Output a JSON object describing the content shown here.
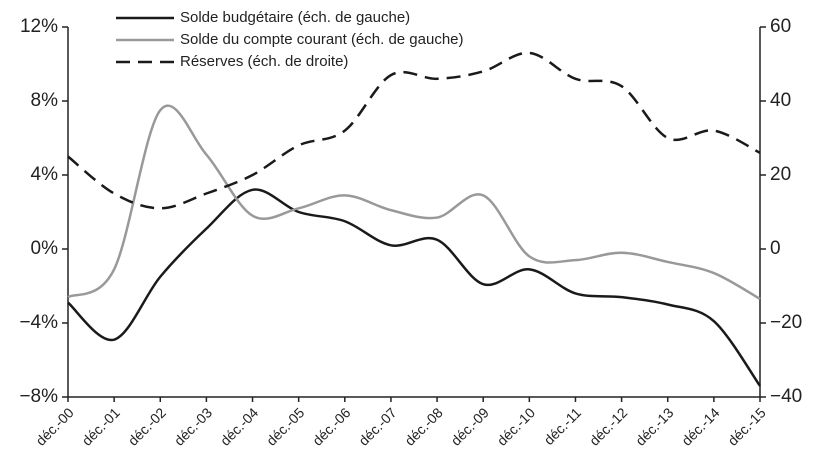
{
  "chart_data": {
    "type": "line",
    "categories": [
      "déc.-00",
      "déc.-01",
      "déc.-02",
      "déc.-03",
      "déc.-04",
      "déc.-05",
      "déc.-06",
      "déc.-07",
      "déc.-08",
      "déc.-09",
      "déc.-10",
      "déc.-11",
      "déc.-12",
      "déc.-13",
      "déc.-14",
      "déc.-15"
    ],
    "series": [
      {
        "name": "Solde budgétaire (éch. de gauche)",
        "color": "#1a1a1a",
        "dash": "solid",
        "values": [
          -2.9,
          -4.9,
          -1.5,
          1.1,
          3.2,
          2.0,
          1.5,
          0.2,
          0.5,
          -1.9,
          -1.1,
          -2.4,
          -2.6,
          -3.0,
          -3.9,
          -7.4
        ]
      },
      {
        "name": "Solde du compte courant (éch. de gauche)",
        "color": "#999999",
        "dash": "solid",
        "values": [
          -2.6,
          -1.1,
          7.5,
          5.1,
          1.8,
          2.2,
          2.9,
          2.1,
          1.7,
          2.9,
          -0.4,
          -0.6,
          -0.2,
          -0.7,
          -1.3,
          -2.7
        ]
      },
      {
        "name": "Réserves (éch. de droite)",
        "color": "#1a1a1a",
        "dash": "dashed",
        "axis": "y2",
        "values": [
          25,
          15,
          11,
          15,
          20,
          28,
          32,
          47,
          46,
          48,
          53,
          46,
          44,
          30,
          32,
          26
        ]
      }
    ],
    "ylim": [
      -8,
      12
    ],
    "yticks": [
      {
        "value": -8,
        "label": "−8%"
      },
      {
        "value": -4,
        "label": "−4%"
      },
      {
        "value": 0,
        "label": "0%"
      },
      {
        "value": 4,
        "label": "4%"
      },
      {
        "value": 8,
        "label": "8%"
      },
      {
        "value": 12,
        "label": "12%"
      }
    ],
    "y2lim": [
      -40,
      60
    ],
    "y2ticks": [
      {
        "value": -40,
        "label": "−40"
      },
      {
        "value": -20,
        "label": "−20"
      },
      0,
      20,
      40,
      60
    ],
    "grid": false,
    "legend": "top-left"
  }
}
